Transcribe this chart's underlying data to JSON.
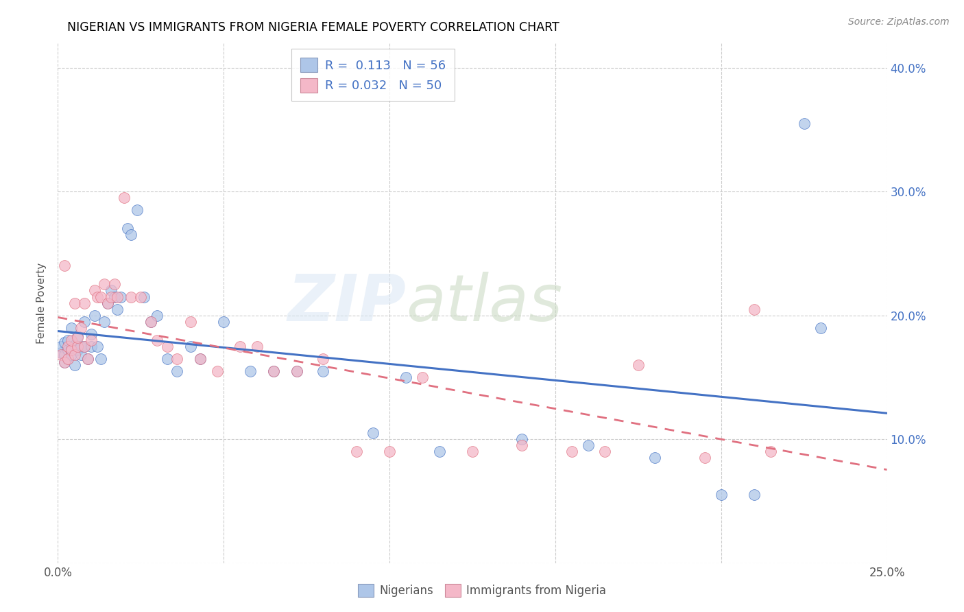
{
  "title": "NIGERIAN VS IMMIGRANTS FROM NIGERIA FEMALE POVERTY CORRELATION CHART",
  "source": "Source: ZipAtlas.com",
  "ylabel": "Female Poverty",
  "xlim": [
    0.0,
    0.25
  ],
  "ylim": [
    0.0,
    0.42
  ],
  "xticks": [
    0.0,
    0.05,
    0.1,
    0.15,
    0.2,
    0.25
  ],
  "xticklabels": [
    "0.0%",
    "",
    "",
    "",
    "",
    "25.0%"
  ],
  "yticks": [
    0.0,
    0.1,
    0.2,
    0.3,
    0.4
  ],
  "yticklabels_right": [
    "",
    "10.0%",
    "20.0%",
    "30.0%",
    "40.0%"
  ],
  "legend_R1": "0.113",
  "legend_N1": "56",
  "legend_R2": "0.032",
  "legend_N2": "50",
  "color_nigeria": "#aec6e8",
  "color_immigrant": "#f4b8c8",
  "trendline_nigeria": "#4472c4",
  "trendline_immigrant": "#e07080",
  "nigerians_x": [
    0.001,
    0.001,
    0.002,
    0.002,
    0.002,
    0.003,
    0.003,
    0.003,
    0.004,
    0.004,
    0.004,
    0.005,
    0.005,
    0.006,
    0.006,
    0.007,
    0.007,
    0.008,
    0.008,
    0.009,
    0.01,
    0.01,
    0.011,
    0.012,
    0.013,
    0.014,
    0.015,
    0.016,
    0.017,
    0.018,
    0.019,
    0.021,
    0.022,
    0.024,
    0.026,
    0.028,
    0.03,
    0.033,
    0.036,
    0.04,
    0.043,
    0.05,
    0.058,
    0.065,
    0.072,
    0.08,
    0.095,
    0.105,
    0.115,
    0.14,
    0.16,
    0.18,
    0.2,
    0.21,
    0.225,
    0.23
  ],
  "nigerians_y": [
    0.17,
    0.175,
    0.162,
    0.168,
    0.178,
    0.165,
    0.172,
    0.18,
    0.168,
    0.174,
    0.19,
    0.16,
    0.176,
    0.172,
    0.183,
    0.175,
    0.168,
    0.195,
    0.175,
    0.165,
    0.185,
    0.175,
    0.2,
    0.175,
    0.165,
    0.195,
    0.21,
    0.22,
    0.215,
    0.205,
    0.215,
    0.27,
    0.265,
    0.285,
    0.215,
    0.195,
    0.2,
    0.165,
    0.155,
    0.175,
    0.165,
    0.195,
    0.155,
    0.155,
    0.155,
    0.155,
    0.105,
    0.15,
    0.09,
    0.1,
    0.095,
    0.085,
    0.055,
    0.055,
    0.355,
    0.19
  ],
  "immigrants_x": [
    0.001,
    0.002,
    0.002,
    0.003,
    0.003,
    0.004,
    0.004,
    0.005,
    0.005,
    0.006,
    0.006,
    0.007,
    0.008,
    0.008,
    0.009,
    0.01,
    0.011,
    0.012,
    0.013,
    0.014,
    0.015,
    0.016,
    0.017,
    0.018,
    0.02,
    0.022,
    0.025,
    0.028,
    0.03,
    0.033,
    0.036,
    0.04,
    0.043,
    0.048,
    0.055,
    0.06,
    0.065,
    0.072,
    0.08,
    0.09,
    0.1,
    0.11,
    0.125,
    0.14,
    0.155,
    0.165,
    0.175,
    0.195,
    0.21,
    0.215
  ],
  "immigrants_y": [
    0.168,
    0.24,
    0.162,
    0.175,
    0.165,
    0.172,
    0.18,
    0.168,
    0.21,
    0.175,
    0.182,
    0.19,
    0.175,
    0.21,
    0.165,
    0.18,
    0.22,
    0.215,
    0.215,
    0.225,
    0.21,
    0.215,
    0.225,
    0.215,
    0.295,
    0.215,
    0.215,
    0.195,
    0.18,
    0.175,
    0.165,
    0.195,
    0.165,
    0.155,
    0.175,
    0.175,
    0.155,
    0.155,
    0.165,
    0.09,
    0.09,
    0.15,
    0.09,
    0.095,
    0.09,
    0.09,
    0.16,
    0.085,
    0.205,
    0.09
  ]
}
